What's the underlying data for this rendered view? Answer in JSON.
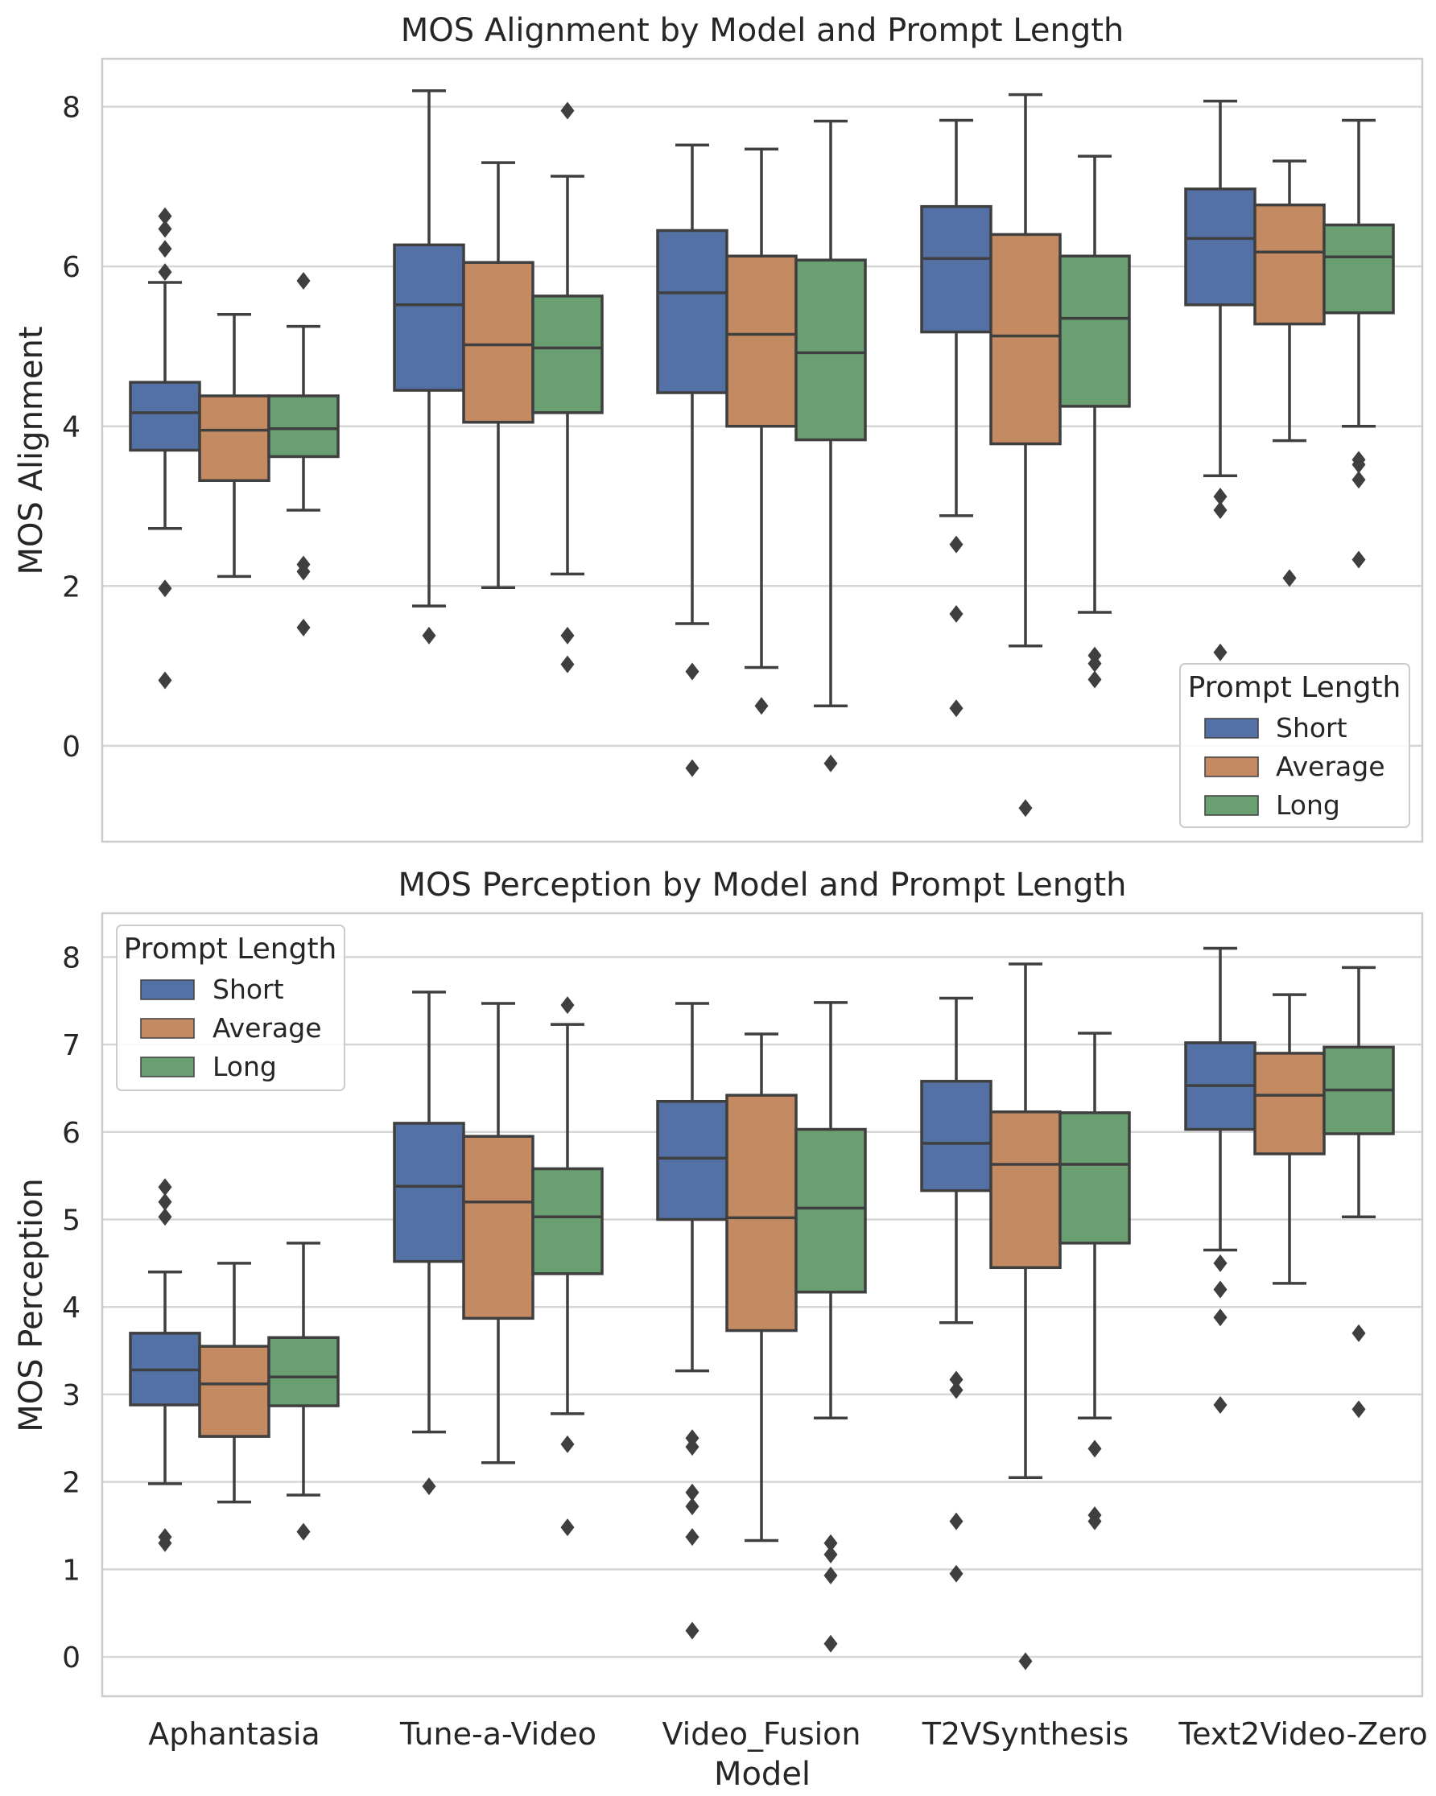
{
  "colors": {
    "background": "#ffffff",
    "gridline": "#d6d6d6",
    "frame": "#cccccc",
    "line": "#3f3f3f",
    "text": "#262626"
  },
  "figure": {
    "xlabel": "Model"
  },
  "chart_data": [
    {
      "type": "box",
      "title": "MOS Alignment by Model and Prompt Length",
      "xlabel": "",
      "ylabel": "MOS Alignment",
      "ylim": [
        -1.2,
        8.6
      ],
      "yticks": [
        0,
        2,
        4,
        6,
        8
      ],
      "grid": true,
      "legend": {
        "title": "Prompt Length",
        "placement": "lower-right"
      },
      "categories": [
        "Aphantasia",
        "Tune-a-Video",
        "Video_Fusion",
        "T2VSynthesis",
        "Text2Video-Zero"
      ],
      "series": [
        {
          "name": "Short",
          "color": "#5471a6",
          "boxes": [
            {
              "whislo": 2.72,
              "q1": 3.7,
              "med": 4.17,
              "q3": 4.55,
              "whishi": 5.8,
              "fliers": [
                0.82,
                1.97,
                5.93,
                6.22,
                6.47,
                6.63
              ]
            },
            {
              "whislo": 1.75,
              "q1": 4.45,
              "med": 5.52,
              "q3": 6.27,
              "whishi": 8.2,
              "fliers": [
                1.38
              ]
            },
            {
              "whislo": 1.53,
              "q1": 4.42,
              "med": 5.67,
              "q3": 6.45,
              "whishi": 7.52,
              "fliers": [
                0.93,
                -0.28
              ]
            },
            {
              "whislo": 2.88,
              "q1": 5.18,
              "med": 6.1,
              "q3": 6.75,
              "whishi": 7.83,
              "fliers": [
                2.52,
                1.65,
                0.47
              ]
            },
            {
              "whislo": 3.38,
              "q1": 5.52,
              "med": 6.35,
              "q3": 6.97,
              "whishi": 8.07,
              "fliers": [
                3.12,
                2.95,
                1.17
              ]
            }
          ]
        },
        {
          "name": "Average",
          "color": "#c48b62",
          "boxes": [
            {
              "whislo": 2.12,
              "q1": 3.32,
              "med": 3.95,
              "q3": 4.38,
              "whishi": 5.4,
              "fliers": []
            },
            {
              "whislo": 1.98,
              "q1": 4.05,
              "med": 5.02,
              "q3": 6.05,
              "whishi": 7.3,
              "fliers": []
            },
            {
              "whislo": 0.98,
              "q1": 4.0,
              "med": 5.15,
              "q3": 6.13,
              "whishi": 7.47,
              "fliers": [
                0.5
              ]
            },
            {
              "whislo": 1.25,
              "q1": 3.78,
              "med": 5.13,
              "q3": 6.4,
              "whishi": 8.15,
              "fliers": [
                -0.78
              ]
            },
            {
              "whislo": 3.82,
              "q1": 5.28,
              "med": 6.18,
              "q3": 6.77,
              "whishi": 7.32,
              "fliers": [
                2.1
              ]
            }
          ]
        },
        {
          "name": "Long",
          "color": "#6a9f72",
          "boxes": [
            {
              "whislo": 2.95,
              "q1": 3.62,
              "med": 3.97,
              "q3": 4.38,
              "whishi": 5.25,
              "fliers": [
                5.82,
                2.27,
                2.18,
                1.48
              ]
            },
            {
              "whislo": 2.15,
              "q1": 4.17,
              "med": 4.98,
              "q3": 5.63,
              "whishi": 7.13,
              "fliers": [
                7.95,
                1.38,
                1.02
              ]
            },
            {
              "whislo": 0.5,
              "q1": 3.83,
              "med": 4.92,
              "q3": 6.08,
              "whishi": 7.82,
              "fliers": [
                -0.22
              ]
            },
            {
              "whislo": 1.67,
              "q1": 4.25,
              "med": 5.35,
              "q3": 6.13,
              "whishi": 7.38,
              "fliers": [
                1.13,
                1.03,
                0.83
              ]
            },
            {
              "whislo": 4.0,
              "q1": 5.42,
              "med": 6.12,
              "q3": 6.52,
              "whishi": 7.83,
              "fliers": [
                3.58,
                3.52,
                3.33,
                2.33
              ]
            }
          ]
        }
      ]
    },
    {
      "type": "box",
      "title": "MOS Perception by Model and Prompt Length",
      "xlabel": "Model",
      "ylabel": "MOS Perception",
      "ylim": [
        -0.45,
        8.5
      ],
      "yticks": [
        0,
        1,
        2,
        3,
        4,
        5,
        6,
        7,
        8
      ],
      "grid": true,
      "legend": {
        "title": "Prompt Length",
        "placement": "upper-left"
      },
      "categories": [
        "Aphantasia",
        "Tune-a-Video",
        "Video_Fusion",
        "T2VSynthesis",
        "Text2Video-Zero"
      ],
      "series": [
        {
          "name": "Short",
          "color": "#5471a6",
          "boxes": [
            {
              "whislo": 1.98,
              "q1": 2.88,
              "med": 3.28,
              "q3": 3.7,
              "whishi": 4.4,
              "fliers": [
                5.37,
                5.2,
                5.03,
                1.37,
                1.3
              ]
            },
            {
              "whislo": 2.57,
              "q1": 4.52,
              "med": 5.38,
              "q3": 6.1,
              "whishi": 7.6,
              "fliers": [
                1.95
              ]
            },
            {
              "whislo": 3.27,
              "q1": 5.0,
              "med": 5.7,
              "q3": 6.35,
              "whishi": 7.47,
              "fliers": [
                2.5,
                2.4,
                1.88,
                1.72,
                1.37,
                0.3
              ]
            },
            {
              "whislo": 3.82,
              "q1": 5.33,
              "med": 5.87,
              "q3": 6.58,
              "whishi": 7.53,
              "fliers": [
                3.17,
                3.05,
                1.55,
                0.95
              ]
            },
            {
              "whislo": 4.65,
              "q1": 6.03,
              "med": 6.53,
              "q3": 7.02,
              "whishi": 8.1,
              "fliers": [
                4.5,
                4.2,
                3.88,
                2.88
              ]
            }
          ]
        },
        {
          "name": "Average",
          "color": "#c48b62",
          "boxes": [
            {
              "whislo": 1.77,
              "q1": 2.52,
              "med": 3.12,
              "q3": 3.55,
              "whishi": 4.5,
              "fliers": []
            },
            {
              "whislo": 2.22,
              "q1": 3.87,
              "med": 5.2,
              "q3": 5.95,
              "whishi": 7.47,
              "fliers": []
            },
            {
              "whislo": 1.33,
              "q1": 3.73,
              "med": 5.02,
              "q3": 6.42,
              "whishi": 7.12,
              "fliers": []
            },
            {
              "whislo": 2.05,
              "q1": 4.45,
              "med": 5.63,
              "q3": 6.23,
              "whishi": 7.92,
              "fliers": [
                -0.05
              ]
            },
            {
              "whislo": 4.27,
              "q1": 5.75,
              "med": 6.42,
              "q3": 6.9,
              "whishi": 7.57,
              "fliers": []
            }
          ]
        },
        {
          "name": "Long",
          "color": "#6a9f72",
          "boxes": [
            {
              "whislo": 1.85,
              "q1": 2.87,
              "med": 3.2,
              "q3": 3.65,
              "whishi": 4.73,
              "fliers": [
                1.43
              ]
            },
            {
              "whislo": 2.78,
              "q1": 4.38,
              "med": 5.03,
              "q3": 5.58,
              "whishi": 7.23,
              "fliers": [
                7.45,
                2.43,
                1.48
              ]
            },
            {
              "whislo": 2.73,
              "q1": 4.17,
              "med": 5.13,
              "q3": 6.03,
              "whishi": 7.48,
              "fliers": [
                1.3,
                1.17,
                0.93,
                0.15
              ]
            },
            {
              "whislo": 2.73,
              "q1": 4.73,
              "med": 5.63,
              "q3": 6.22,
              "whishi": 7.13,
              "fliers": [
                2.38,
                1.62,
                1.55
              ]
            },
            {
              "whislo": 5.03,
              "q1": 5.98,
              "med": 6.48,
              "q3": 6.97,
              "whishi": 7.88,
              "fliers": [
                3.7,
                2.83
              ]
            }
          ]
        }
      ]
    }
  ]
}
